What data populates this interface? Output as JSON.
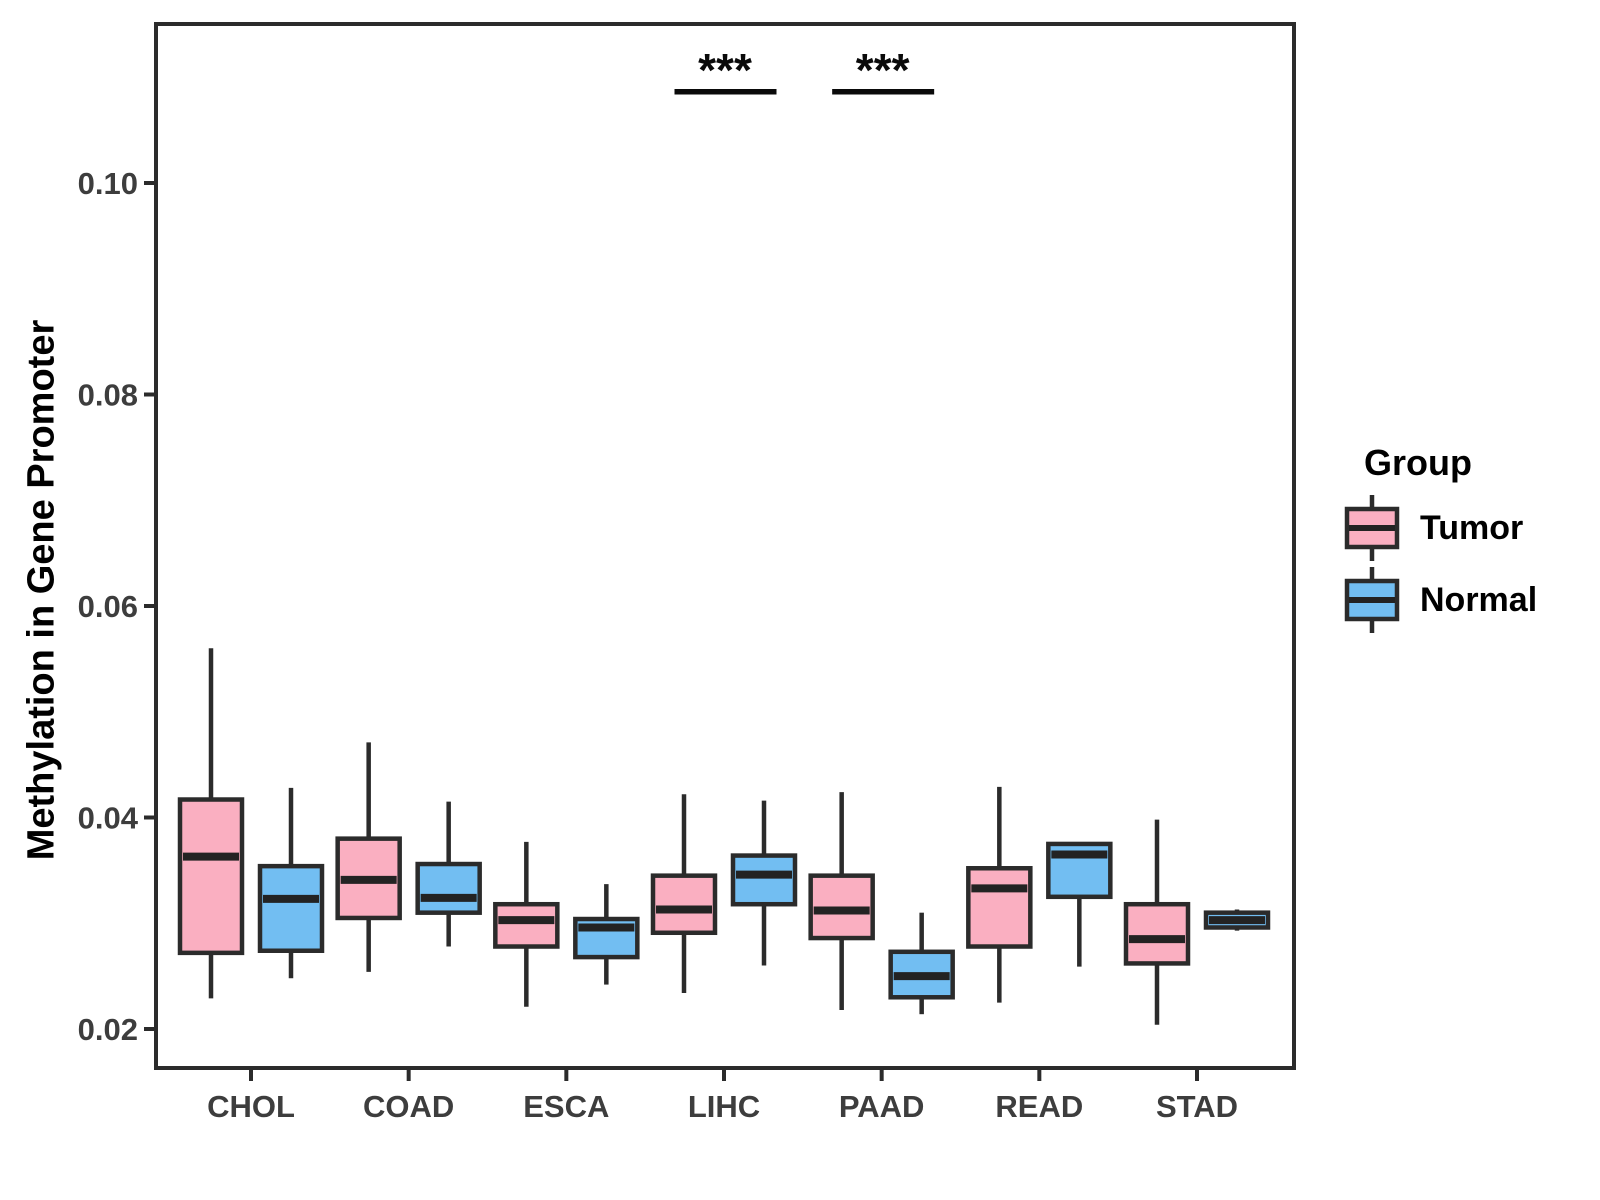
{
  "figure": {
    "background": "#ffffff",
    "panel_border_color": "#2b2b2b",
    "axis_text_color": "#3d3d3d",
    "box_border_color": "#2b2b2b",
    "median_color": "#232323",
    "significance_color": "#0a0a0a"
  },
  "ylabel": "Methylation in Gene Promoter",
  "legend": {
    "title": "Group",
    "items": [
      {
        "label": "Tumor",
        "color": "#faafc1"
      },
      {
        "label": "Normal",
        "color": "#72bef2"
      }
    ]
  },
  "chart_data": {
    "type": "boxplot",
    "title": "",
    "xlabel": "",
    "ylabel": "Methylation in Gene Promoter",
    "categories": [
      "CHOL",
      "COAD",
      "ESCA",
      "LIHC",
      "PAAD",
      "READ",
      "STAD"
    ],
    "y_ticks": [
      0.02,
      0.04,
      0.06,
      0.08,
      0.1
    ],
    "ylim": [
      0.016,
      0.115
    ],
    "grid": false,
    "legend_position": "right",
    "series": [
      {
        "name": "Tumor",
        "color": "#faafc1",
        "boxes": [
          {
            "category": "CHOL",
            "min": 0.0229,
            "q1": 0.0272,
            "median": 0.0363,
            "q3": 0.0417,
            "max": 0.056
          },
          {
            "category": "COAD",
            "min": 0.0254,
            "q1": 0.0305,
            "median": 0.0341,
            "q3": 0.038,
            "max": 0.0471
          },
          {
            "category": "ESCA",
            "min": 0.0221,
            "q1": 0.0278,
            "median": 0.0303,
            "q3": 0.0318,
            "max": 0.0377
          },
          {
            "category": "LIHC",
            "min": 0.0234,
            "q1": 0.0291,
            "median": 0.0313,
            "q3": 0.0345,
            "max": 0.0422
          },
          {
            "category": "PAAD",
            "min": 0.0218,
            "q1": 0.0286,
            "median": 0.0312,
            "q3": 0.0345,
            "max": 0.0424
          },
          {
            "category": "READ",
            "min": 0.0225,
            "q1": 0.0278,
            "median": 0.0333,
            "q3": 0.0352,
            "max": 0.0429
          },
          {
            "category": "STAD",
            "min": 0.0204,
            "q1": 0.0262,
            "median": 0.0285,
            "q3": 0.0318,
            "max": 0.0398
          }
        ]
      },
      {
        "name": "Normal",
        "color": "#72bef2",
        "boxes": [
          {
            "category": "CHOL",
            "min": 0.0248,
            "q1": 0.0274,
            "median": 0.0323,
            "q3": 0.0354,
            "max": 0.0428
          },
          {
            "category": "COAD",
            "min": 0.0278,
            "q1": 0.031,
            "median": 0.0324,
            "q3": 0.0356,
            "max": 0.0415
          },
          {
            "category": "ESCA",
            "min": 0.0242,
            "q1": 0.0268,
            "median": 0.0296,
            "q3": 0.0304,
            "max": 0.0337
          },
          {
            "category": "LIHC",
            "min": 0.026,
            "q1": 0.0318,
            "median": 0.0346,
            "q3": 0.0364,
            "max": 0.0416
          },
          {
            "category": "PAAD",
            "min": 0.0214,
            "q1": 0.023,
            "median": 0.025,
            "q3": 0.0273,
            "max": 0.031
          },
          {
            "category": "READ",
            "min": 0.0259,
            "q1": 0.0325,
            "median": 0.0365,
            "q3": 0.0375,
            "max": 0.0376
          },
          {
            "category": "STAD",
            "min": 0.0293,
            "q1": 0.0296,
            "median": 0.0303,
            "q3": 0.031,
            "max": 0.0313
          }
        ]
      }
    ],
    "annotations": [
      {
        "category": "LIHC",
        "text": "***"
      },
      {
        "category": "PAAD",
        "text": "***"
      }
    ]
  }
}
